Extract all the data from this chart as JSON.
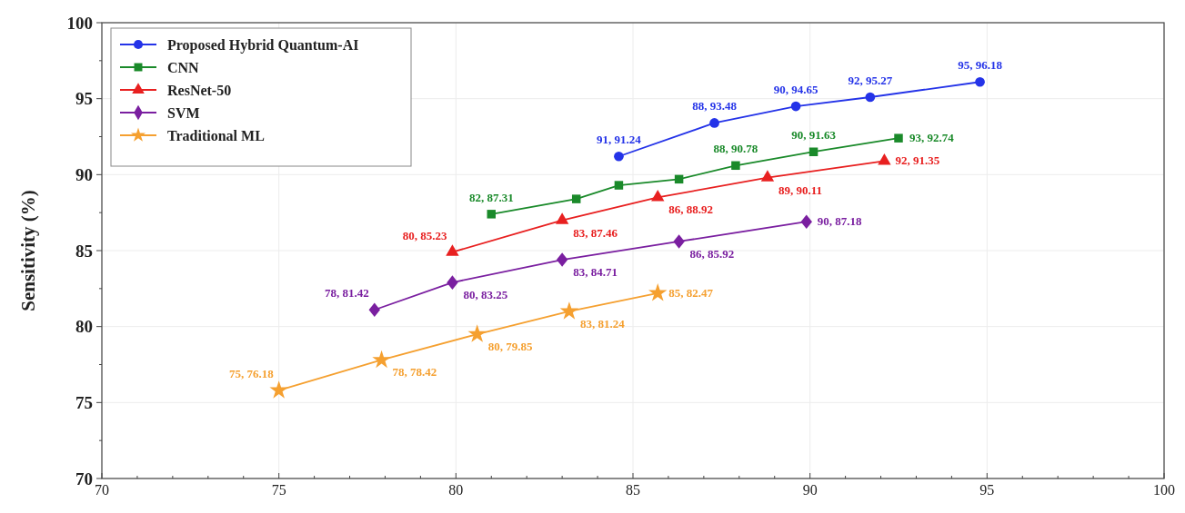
{
  "chart_data": {
    "type": "line",
    "ylabel": "Sensitivity (%)",
    "xlim": [
      70,
      100
    ],
    "ylim": [
      70,
      100
    ],
    "xticks": [
      70,
      75,
      80,
      85,
      90,
      95,
      100
    ],
    "yticks": [
      70,
      75,
      80,
      85,
      90,
      95,
      100
    ],
    "grid": true,
    "legend": "top left",
    "line_style": "solid",
    "series": [
      {
        "name": "Proposed Hybrid Quantum-AI",
        "color": "#2433e8",
        "marker": "circle",
        "x": [
          84.6,
          87.3,
          89.6,
          91.7,
          94.8
        ],
        "values": [
          91.2,
          93.4,
          94.5,
          95.1,
          96.1
        ]
      },
      {
        "name": "CNN",
        "color": "#1a8a2a",
        "marker": "square",
        "x": [
          81.0,
          83.4,
          84.6,
          86.3,
          87.9,
          90.1,
          92.5
        ],
        "values": [
          87.4,
          88.4,
          89.3,
          89.7,
          90.6,
          91.5,
          92.4
        ]
      },
      {
        "name": "ResNet-50",
        "color": "#e82020",
        "marker": "triangle",
        "x": [
          79.9,
          83.0,
          85.7,
          88.8,
          92.1
        ],
        "values": [
          84.9,
          87.0,
          88.5,
          89.8,
          90.9
        ]
      },
      {
        "name": "SVM",
        "color": "#7a1fa0",
        "marker": "diamond",
        "x": [
          77.7,
          79.9,
          83.0,
          86.3,
          89.9
        ],
        "values": [
          81.1,
          82.9,
          84.4,
          85.6,
          86.9
        ]
      },
      {
        "name": "Traditional ML",
        "color": "#f5a030",
        "marker": "star",
        "x": [
          75.0,
          77.9,
          80.6,
          83.2,
          85.7
        ],
        "values": [
          75.8,
          77.8,
          79.5,
          81.0,
          82.2
        ]
      }
    ],
    "annotations": [
      {
        "text": "91, 91.24",
        "x": 84.6,
        "y": 91.2
      },
      {
        "text": "88, 93.48",
        "x": 87.3,
        "y": 93.4
      },
      {
        "text": "90, 94.65",
        "x": 89.6,
        "y": 94.5
      },
      {
        "text": "92, 95.27",
        "x": 91.7,
        "y": 95.1
      },
      {
        "text": "95, 96.18",
        "x": 94.8,
        "y": 96.1
      },
      {
        "text": "82, 87.31",
        "x": 81.0,
        "y": 87.4
      },
      {
        "text": "88, 90.78",
        "x": 87.9,
        "y": 90.6
      },
      {
        "text": "90, 91.63",
        "x": 90.1,
        "y": 91.5
      },
      {
        "text": "93, 92.74",
        "x": 92.5,
        "y": 92.4
      },
      {
        "text": "80, 85.23",
        "x": 79.9,
        "y": 84.9
      },
      {
        "text": "83, 87.46",
        "x": 83.0,
        "y": 87.0
      },
      {
        "text": "86, 88.92",
        "x": 85.7,
        "y": 88.5
      },
      {
        "text": "89, 90.11",
        "x": 88.8,
        "y": 89.8
      },
      {
        "text": "92, 91.35",
        "x": 92.1,
        "y": 90.9
      },
      {
        "text": "78, 81.42",
        "x": 77.7,
        "y": 81.1
      },
      {
        "text": "80, 83.25",
        "x": 79.9,
        "y": 82.9
      },
      {
        "text": "83, 84.71",
        "x": 83.0,
        "y": 84.4
      },
      {
        "text": "86, 85.92",
        "x": 86.3,
        "y": 85.6
      },
      {
        "text": "90, 87.18",
        "x": 89.9,
        "y": 86.9
      },
      {
        "text": "75, 76.18",
        "x": 75.0,
        "y": 75.8
      },
      {
        "text": "78, 78.42",
        "x": 77.9,
        "y": 77.8
      },
      {
        "text": "80, 79.85",
        "x": 80.6,
        "y": 79.5
      },
      {
        "text": "83, 81.24",
        "x": 83.2,
        "y": 81.0
      },
      {
        "text": "85, 82.47",
        "x": 85.7,
        "y": 82.2
      }
    ]
  }
}
